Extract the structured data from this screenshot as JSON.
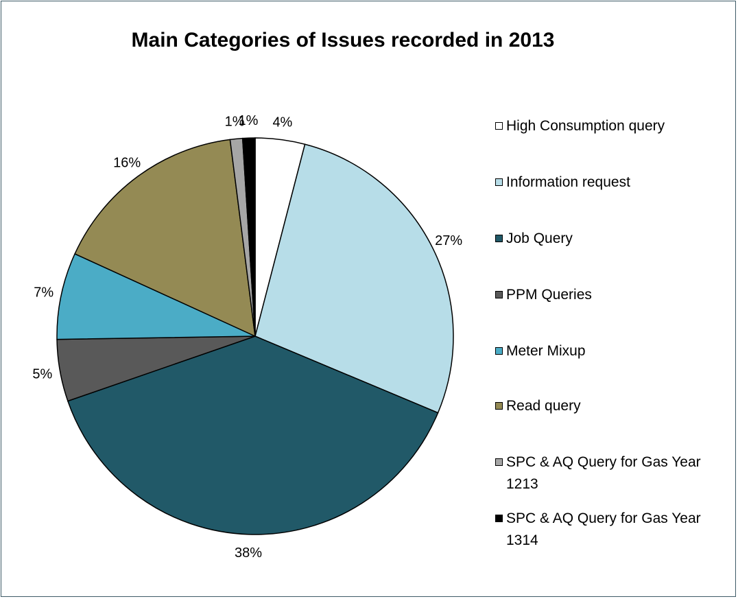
{
  "chart_data": {
    "type": "pie",
    "title": "Main Categories of Issues recorded in 2013",
    "legend_position": "right",
    "slices": [
      {
        "label": "High Consumption query",
        "value": 4,
        "display": "4%",
        "color": "#ffffff"
      },
      {
        "label": "Information request",
        "value": 27,
        "display": "27%",
        "color": "#b7dde8"
      },
      {
        "label": "Job Query",
        "value": 38,
        "display": "38%",
        "color": "#215968"
      },
      {
        "label": "PPM Queries",
        "value": 5,
        "display": "5%",
        "color": "#595959"
      },
      {
        "label": "Meter Mixup",
        "value": 7,
        "display": "7%",
        "color": "#4bacc6"
      },
      {
        "label": "Read query",
        "value": 16,
        "display": "16%",
        "color": "#948a54"
      },
      {
        "label": "SPC & AQ Query for Gas Year 1213",
        "value": 1,
        "display": "1%",
        "color": "#a6a6a6"
      },
      {
        "label": "SPC & AQ Query for Gas Year 1314",
        "value": 1,
        "display": "1%",
        "color": "#000000"
      }
    ]
  }
}
